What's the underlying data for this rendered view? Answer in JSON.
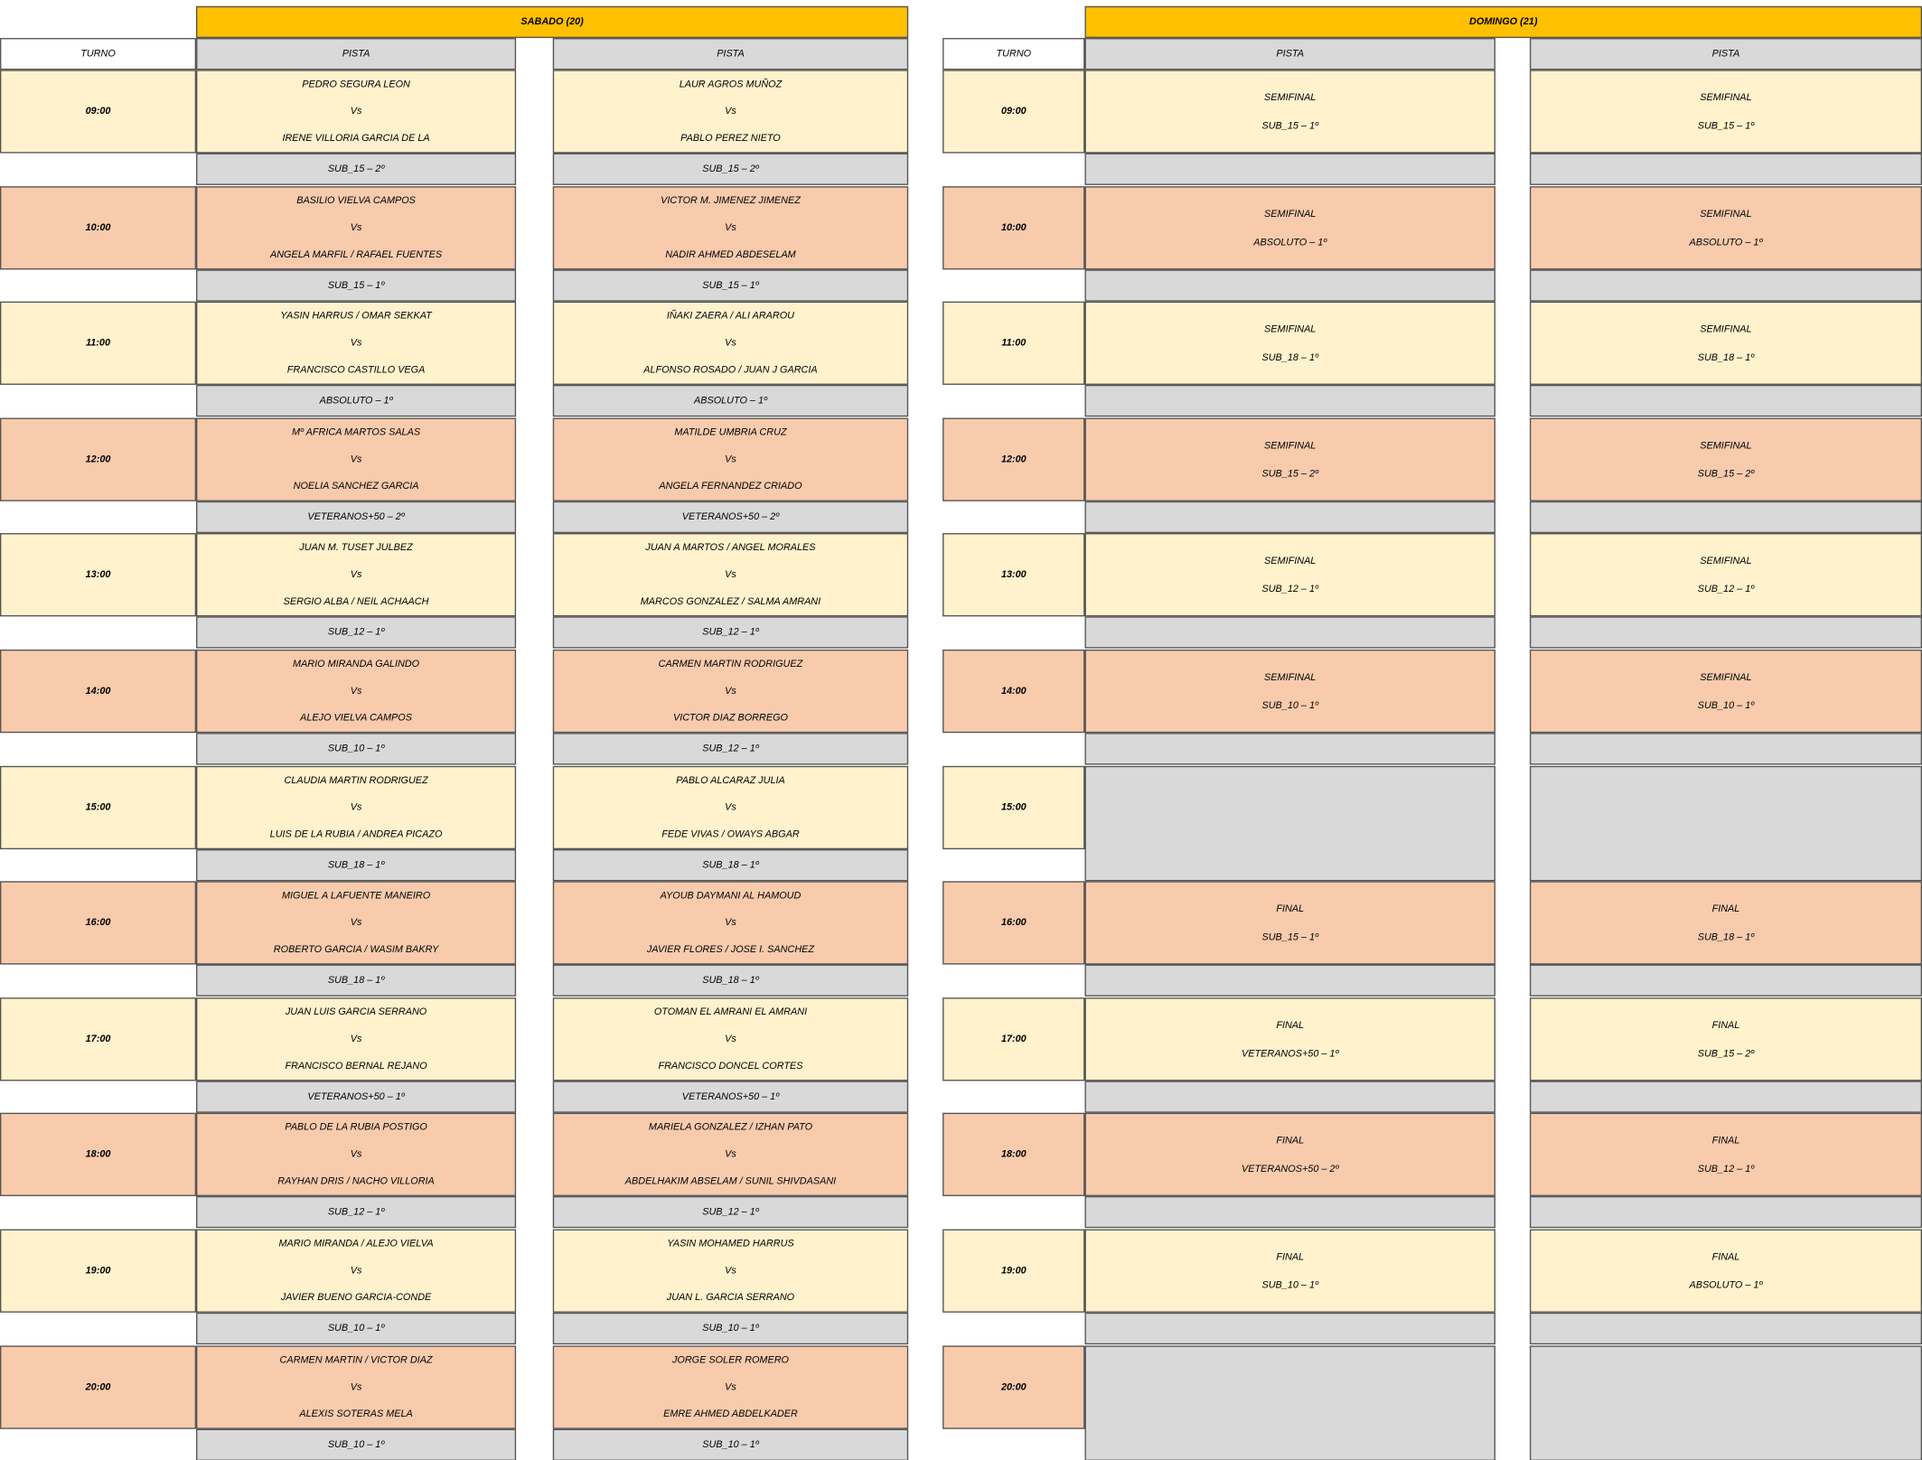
{
  "saturday": {
    "header": "SABADO (20)",
    "turno_label": "TURNO",
    "pista_labels": [
      "PISTA",
      "PISTA"
    ],
    "rows": [
      {
        "time": "09:00",
        "courts": [
          {
            "lines": [
              "PEDRO SEGURA LEON",
              "Vs",
              "IRENE VILLORIA GARCIA DE LA"
            ],
            "category": "SUB_15 – 2º"
          },
          {
            "lines": [
              "LAUR AGROS MUÑOZ",
              "Vs",
              "PABLO PEREZ NIETO"
            ],
            "category": "SUB_15 – 2º"
          }
        ]
      },
      {
        "time": "10:00",
        "courts": [
          {
            "lines": [
              "BASILIO VIELVA CAMPOS",
              "Vs",
              "ANGELA MARFIL / RAFAEL FUENTES"
            ],
            "category": "SUB_15 – 1º"
          },
          {
            "lines": [
              "VICTOR M. JIMENEZ JIMENEZ",
              "Vs",
              "NADIR AHMED ABDESELAM"
            ],
            "category": "SUB_15 – 1º"
          }
        ]
      },
      {
        "time": "11:00",
        "courts": [
          {
            "lines": [
              "YASIN HARRUS / OMAR SEKKAT",
              "Vs",
              "FRANCISCO CASTILLO VEGA"
            ],
            "category": "ABSOLUTO – 1º"
          },
          {
            "lines": [
              "IÑAKI ZAERA / ALI ARAROU",
              "Vs",
              "ALFONSO ROSADO / JUAN J GARCIA"
            ],
            "category": "ABSOLUTO – 1º"
          }
        ]
      },
      {
        "time": "12:00",
        "courts": [
          {
            "lines": [
              "Mº AFRICA MARTOS SALAS",
              "Vs",
              "NOELIA SANCHEZ GARCIA"
            ],
            "category": "VETERANOS+50 – 2º"
          },
          {
            "lines": [
              "MATILDE UMBRIA CRUZ",
              "Vs",
              "ANGELA FERNANDEZ CRIADO"
            ],
            "category": "VETERANOS+50 – 2º"
          }
        ]
      },
      {
        "time": "13:00",
        "courts": [
          {
            "lines": [
              "JUAN M. TUSET JULBEZ",
              "Vs",
              "SERGIO ALBA / NEIL ACHAACH"
            ],
            "category": "SUB_12 – 1º"
          },
          {
            "lines": [
              "JUAN A MARTOS / ANGEL MORALES",
              "Vs",
              "MARCOS GONZALEZ / SALMA AMRANI"
            ],
            "category": "SUB_12 – 1º"
          }
        ]
      },
      {
        "time": "14:00",
        "courts": [
          {
            "lines": [
              "MARIO MIRANDA GALINDO",
              "Vs",
              "ALEJO VIELVA CAMPOS"
            ],
            "category": "SUB_10 – 1º"
          },
          {
            "lines": [
              "CARMEN MARTIN RODRIGUEZ",
              "Vs",
              "VICTOR DIAZ BORREGO"
            ],
            "category": "SUB_12 – 1º"
          }
        ]
      },
      {
        "time": "15:00",
        "courts": [
          {
            "lines": [
              "CLAUDIA MARTIN RODRIGUEZ",
              "Vs",
              "LUIS DE LA RUBIA / ANDREA PICAZO"
            ],
            "category": "SUB_18 – 1º"
          },
          {
            "lines": [
              "PABLO ALCARAZ JULIA",
              "Vs",
              "FEDE VIVAS / OWAYS ABGAR"
            ],
            "category": "SUB_18 – 1º"
          }
        ]
      },
      {
        "time": "16:00",
        "courts": [
          {
            "lines": [
              "MIGUEL A LAFUENTE MANEIRO",
              "Vs",
              "ROBERTO GARCIA / WASIM BAKRY"
            ],
            "category": "SUB_18 – 1º"
          },
          {
            "lines": [
              "AYOUB DAYMANI AL HAMOUD",
              "Vs",
              "JAVIER FLORES / JOSE I. SANCHEZ"
            ],
            "category": "SUB_18 – 1º"
          }
        ]
      },
      {
        "time": "17:00",
        "courts": [
          {
            "lines": [
              "JUAN LUIS GARCIA SERRANO",
              "Vs",
              "FRANCISCO BERNAL REJANO"
            ],
            "category": "VETERANOS+50 – 1º"
          },
          {
            "lines": [
              "OTOMAN EL AMRANI EL AMRANI",
              "Vs",
              "FRANCISCO DONCEL CORTES"
            ],
            "category": "VETERANOS+50 – 1º"
          }
        ]
      },
      {
        "time": "18:00",
        "courts": [
          {
            "lines": [
              "PABLO DE LA RUBIA POSTIGO",
              "Vs",
              "RAYHAN DRIS / NACHO VILLORIA"
            ],
            "category": "SUB_12 – 1º"
          },
          {
            "lines": [
              "MARIELA GONZALEZ / IZHAN PATO",
              "Vs",
              "ABDELHAKIM ABSELAM / SUNIL SHIVDASANI"
            ],
            "category": "SUB_12 – 1º"
          }
        ]
      },
      {
        "time": "19:00",
        "courts": [
          {
            "lines": [
              "MARIO MIRANDA / ALEJO VIELVA",
              "Vs",
              "JAVIER BUENO GARCIA-CONDE"
            ],
            "category": "SUB_10 – 1º"
          },
          {
            "lines": [
              "YASIN MOHAMED HARRUS",
              "Vs",
              "JUAN L. GARCIA SERRANO"
            ],
            "category": "SUB_10 – 1º"
          }
        ]
      },
      {
        "time": "20:00",
        "courts": [
          {
            "lines": [
              "CARMEN MARTIN / VICTOR DIAZ",
              "Vs",
              "ALEXIS SOTERAS MELA"
            ],
            "category": "SUB_10 – 1º"
          },
          {
            "lines": [
              "JORGE SOLER ROMERO",
              "Vs",
              "EMRE AHMED ABDELKADER"
            ],
            "category": "SUB_10 – 1º"
          }
        ]
      }
    ]
  },
  "sunday": {
    "header": "DOMINGO (21)",
    "turno_label": "TURNO",
    "pista_labels": [
      "PISTA",
      "PISTA"
    ],
    "rows": [
      {
        "time": "09:00",
        "courts": [
          {
            "lines": [
              "SEMIFINAL",
              "SUB_15 – 1º"
            ]
          },
          {
            "lines": [
              "SEMIFINAL",
              "SUB_15 – 1º"
            ]
          }
        ]
      },
      {
        "time": "10:00",
        "courts": [
          {
            "lines": [
              "SEMIFINAL",
              "ABSOLUTO – 1º"
            ]
          },
          {
            "lines": [
              "SEMIFINAL",
              "ABSOLUTO – 1º"
            ]
          }
        ]
      },
      {
        "time": "11:00",
        "courts": [
          {
            "lines": [
              "SEMIFINAL",
              "SUB_18 – 1º"
            ]
          },
          {
            "lines": [
              "SEMIFINAL",
              "SUB_18 – 1º"
            ]
          }
        ]
      },
      {
        "time": "12:00",
        "courts": [
          {
            "lines": [
              "SEMIFINAL",
              "SUB_15 – 2º"
            ]
          },
          {
            "lines": [
              "SEMIFINAL",
              "SUB_15 – 2º"
            ]
          }
        ]
      },
      {
        "time": "13:00",
        "courts": [
          {
            "lines": [
              "SEMIFINAL",
              "SUB_12 – 1º"
            ]
          },
          {
            "lines": [
              "SEMIFINAL",
              "SUB_12 – 1º"
            ]
          }
        ]
      },
      {
        "time": "14:00",
        "courts": [
          {
            "lines": [
              "SEMIFINAL",
              "SUB_10 – 1º"
            ]
          },
          {
            "lines": [
              "SEMIFINAL",
              "SUB_10 – 1º"
            ]
          }
        ]
      },
      {
        "time": "15:00",
        "courts": [
          null,
          null
        ]
      },
      {
        "time": "16:00",
        "courts": [
          {
            "lines": [
              "FINAL",
              "SUB_15 – 1º"
            ]
          },
          {
            "lines": [
              "FINAL",
              "SUB_18 – 1º"
            ]
          }
        ]
      },
      {
        "time": "17:00",
        "courts": [
          {
            "lines": [
              "FINAL",
              "VETERANOS+50 – 1º"
            ]
          },
          {
            "lines": [
              "FINAL",
              "SUB_15 – 2º"
            ]
          }
        ]
      },
      {
        "time": "18:00",
        "courts": [
          {
            "lines": [
              "FINAL",
              "VETERANOS+50 – 2º"
            ]
          },
          {
            "lines": [
              "FINAL",
              "SUB_12 – 1º"
            ]
          }
        ]
      },
      {
        "time": "19:00",
        "courts": [
          {
            "lines": [
              "FINAL",
              "SUB_10 – 1º"
            ]
          },
          {
            "lines": [
              "FINAL",
              "ABSOLUTO – 1º"
            ]
          }
        ]
      },
      {
        "time": "20:00",
        "courts": [
          null,
          null
        ]
      }
    ]
  }
}
